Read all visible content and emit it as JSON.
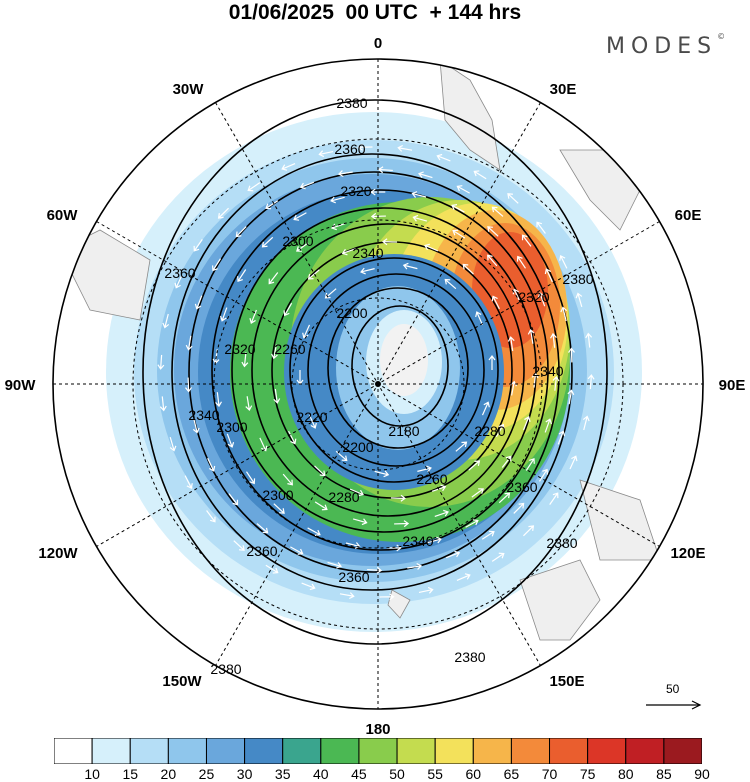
{
  "header": {
    "title": "01/06/2025  00 UTC  + 144 hrs",
    "logo": "MODES"
  },
  "map": {
    "projection": "south polar stereographic",
    "longitude_labels": {
      "0": "0",
      "30E": "30E",
      "60E": "60E",
      "90E": "90E",
      "120E": "120E",
      "150E": "150E",
      "180": "180",
      "150W": "150W",
      "120W": "120W",
      "90W": "90W",
      "60W": "60W",
      "30W": "30W"
    },
    "contour_labels": [
      {
        "id": "c1",
        "text": "2380"
      },
      {
        "id": "c2",
        "text": "2360"
      },
      {
        "id": "c3",
        "text": "2320"
      },
      {
        "id": "c4",
        "text": "2300"
      },
      {
        "id": "c5",
        "text": "2340"
      },
      {
        "id": "c6",
        "text": "2200"
      },
      {
        "id": "c7",
        "text": "2360"
      },
      {
        "id": "c8",
        "text": "2320"
      },
      {
        "id": "c9",
        "text": "2380"
      },
      {
        "id": "c10",
        "text": "2340"
      },
      {
        "id": "c11",
        "text": "2260"
      },
      {
        "id": "c12",
        "text": "2320"
      },
      {
        "id": "c13",
        "text": "2300"
      },
      {
        "id": "c14",
        "text": "2340"
      },
      {
        "id": "c15",
        "text": "2220"
      },
      {
        "id": "c16",
        "text": "2180"
      },
      {
        "id": "c17",
        "text": "2280"
      },
      {
        "id": "c18",
        "text": "2200"
      },
      {
        "id": "c19",
        "text": "2260"
      },
      {
        "id": "c20",
        "text": "2300"
      },
      {
        "id": "c21",
        "text": "2280"
      },
      {
        "id": "c22",
        "text": "2360"
      },
      {
        "id": "c23",
        "text": "2340"
      },
      {
        "id": "c24",
        "text": "2380"
      },
      {
        "id": "c25",
        "text": "2360"
      },
      {
        "id": "c26",
        "text": "2360"
      },
      {
        "id": "c27",
        "text": "2380"
      },
      {
        "id": "c28",
        "text": "2380"
      }
    ],
    "reference_vector": "50"
  },
  "colorbar": {
    "labels": [
      "10",
      "15",
      "20",
      "25",
      "30",
      "35",
      "40",
      "45",
      "50",
      "55",
      "60",
      "65",
      "70",
      "75",
      "80",
      "85",
      "90"
    ],
    "colors": [
      "#ffffff",
      "#d6f0fb",
      "#b5def6",
      "#8fc6ec",
      "#6aa7dc",
      "#4589c6",
      "#3aa58e",
      "#4bb853",
      "#89cc4c",
      "#c4dc4f",
      "#f3e15b",
      "#f6b54a",
      "#f38a3a",
      "#ea5e2e",
      "#dc3627",
      "#c01f24",
      "#9b1a1f"
    ]
  }
}
